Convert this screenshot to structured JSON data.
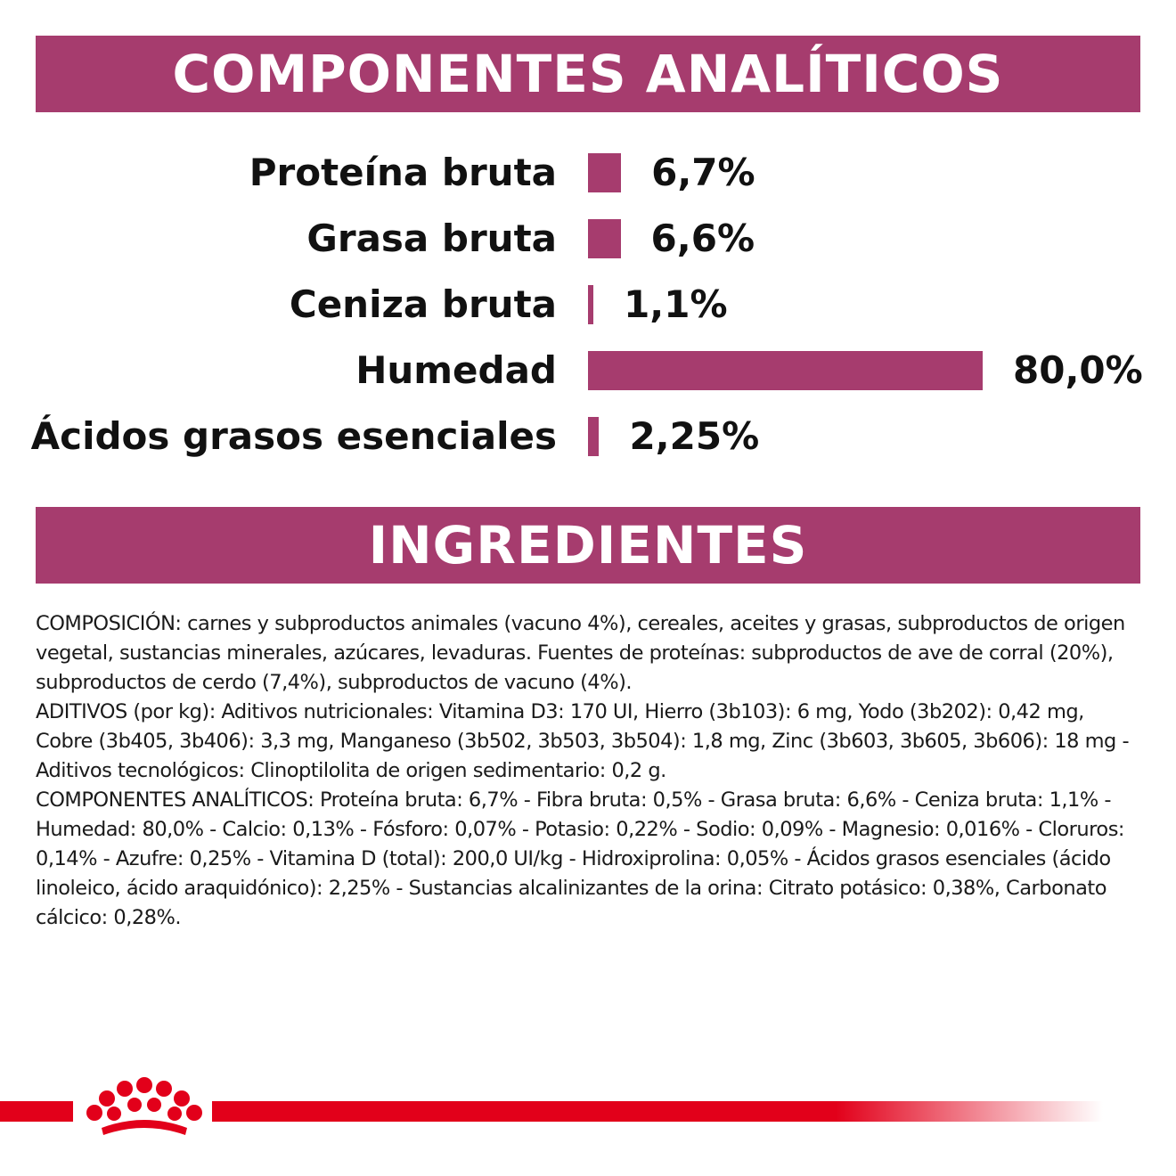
{
  "header_components": {
    "title": "COMPONENTES ANALÍTICOS"
  },
  "header_ingredients": {
    "title": "INGREDIENTES"
  },
  "chart_data": {
    "type": "bar",
    "orientation": "horizontal",
    "categories": [
      "Proteína bruta",
      "Grasa bruta",
      "Ceniza bruta",
      "Humedad",
      "Ácidos grasos esenciales"
    ],
    "values": [
      6.7,
      6.6,
      1.1,
      80.0,
      2.25
    ],
    "value_labels": [
      "6,7%",
      "6,6%",
      "1,1%",
      "80,0%",
      "2,25%"
    ],
    "unit": "%",
    "xlim": [
      0,
      80
    ],
    "grid": false,
    "legend": "none",
    "bar_color": "#a63c6e"
  },
  "ingredients": {
    "paragraphs": [
      "COMPOSICIÓN: carnes y subproductos animales (vacuno 4%), cereales, aceites y grasas, subproductos de origen vegetal, sustancias minerales, azúcares, levaduras. Fuentes de proteínas: subproductos de ave de corral (20%), subproductos de cerdo (7,4%), subproductos de vacuno (4%).",
      "ADITIVOS (por kg): Aditivos nutricionales: Vitamina D3: 170 UI, Hierro (3b103): 6 mg, Yodo (3b202): 0,42 mg, Cobre (3b405, 3b406): 3,3 mg, Manganeso (3b502, 3b503, 3b504): 1,8 mg, Zinc (3b603, 3b605, 3b606): 18 mg - Aditivos tecnológicos: Clinoptilolita de origen sedimentario: 0,2 g.",
      "COMPONENTES ANALÍTICOS: Proteína bruta: 6,7% - Fibra bruta: 0,5% - Grasa bruta: 6,6% - Ceniza bruta: 1,1% - Humedad: 80,0% - Calcio: 0,13% - Fósforo: 0,07% - Potasio: 0,22% - Sodio: 0,09% - Magnesio: 0,016% - Cloruros: 0,14% - Azufre: 0,25% - Vitamina D (total): 200,0 UI/kg - Hidroxiprolina: 0,05% - Ácidos grasos esenciales (ácido linoleico, ácido araquidónico): 2,25% - Sustancias alcalinizantes de la orina: Citrato potásico: 0,38%, Carbonato cálcico: 0,28%."
    ]
  },
  "footer": {
    "logo_icon": "royal-crown-icon",
    "accent": "#e2001a"
  }
}
